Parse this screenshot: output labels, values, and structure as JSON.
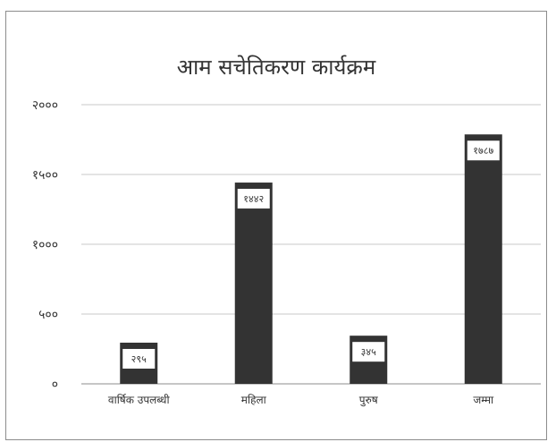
{
  "chart_data": {
    "type": "bar",
    "title": "आम सचेतिकरण कार्यक्रम",
    "categories": [
      "वार्षिक उपलब्धी",
      "महिला",
      "पुरुष",
      "जम्मा"
    ],
    "values": [
      295,
      1442,
      345,
      1787
    ],
    "value_labels": [
      "२९५",
      "१४४२",
      "३४५",
      "१७८७"
    ],
    "y_ticks": [
      0,
      500,
      1000,
      1500,
      2000
    ],
    "y_tick_labels": [
      "०",
      "५००",
      "१०००",
      "१५००",
      "२०००"
    ],
    "ylim": [
      0,
      2000
    ],
    "grid": true,
    "bar_color": "#333333",
    "grid_color": "#c8c8c8",
    "axis_color": "#8c8c8c"
  }
}
